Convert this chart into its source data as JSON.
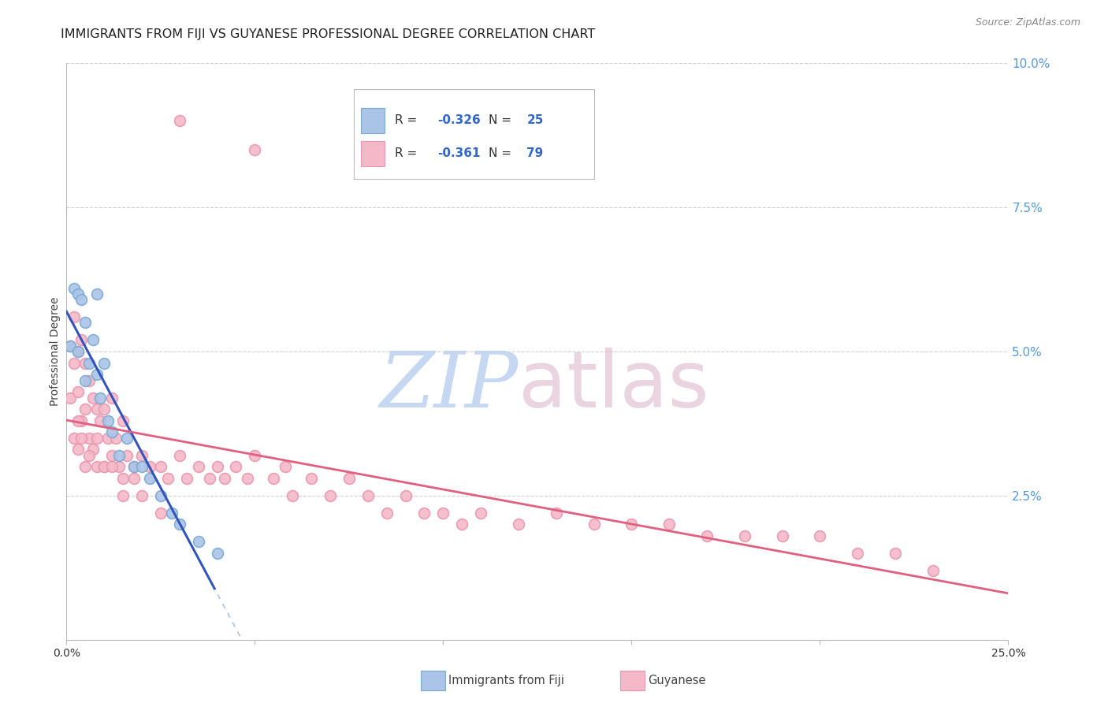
{
  "title": "IMMIGRANTS FROM FIJI VS GUYANESE PROFESSIONAL DEGREE CORRELATION CHART",
  "source": "Source: ZipAtlas.com",
  "ylabel": "Professional Degree",
  "xlim": [
    0.0,
    0.25
  ],
  "ylim": [
    0.0,
    0.1
  ],
  "grid_color": "#cccccc",
  "background_color": "#ffffff",
  "fiji_color": "#aac4e8",
  "guyanese_color": "#f4b8c8",
  "fiji_edge_color": "#7aaad0",
  "guyanese_edge_color": "#e898b0",
  "fiji_line_color": "#3355bb",
  "guyanese_line_color": "#e06080",
  "fiji_trend_ext_color": "#aac4e8",
  "R_fiji": -0.326,
  "N_fiji": 25,
  "R_guyanese": -0.361,
  "N_guyanese": 79,
  "watermark_zip_color": "#c0d4f0",
  "watermark_atlas_color": "#ddb8cc",
  "marker_size": 100,
  "marker_linewidth": 1.2,
  "title_fontsize": 11.5,
  "axis_label_fontsize": 10,
  "tick_fontsize": 10,
  "source_fontsize": 9,
  "yaxis_tick_color": "#5599dd",
  "legend_R_color": "#cc0000",
  "legend_N_color": "#3366cc",
  "legend_text_color": "#333333"
}
